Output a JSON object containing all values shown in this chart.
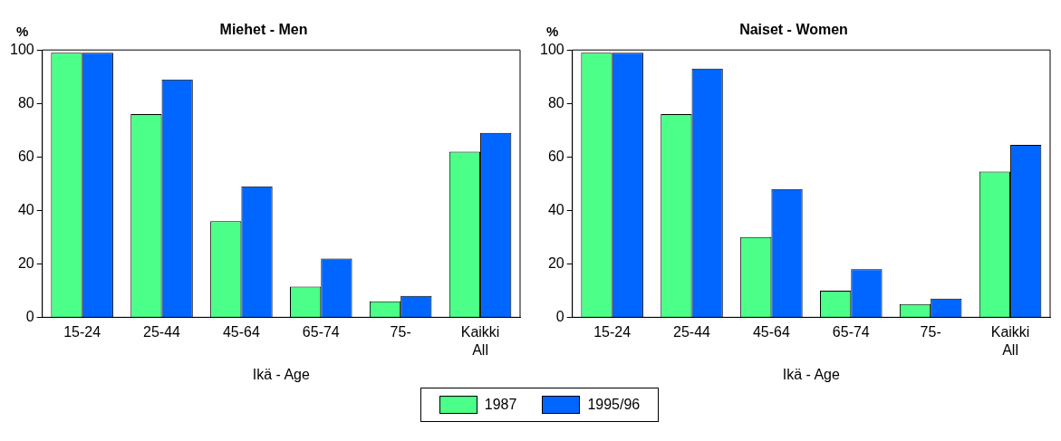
{
  "chart_data": [
    {
      "type": "bar",
      "title": "Miehet - Men",
      "xlabel": "Ikä - Age",
      "ylabel": "%",
      "categories": [
        "15-24",
        "25-44",
        "45-64",
        "65-74",
        "75-",
        "Kaikki\nAll"
      ],
      "series": [
        {
          "name": "1987",
          "color": "#4cff88",
          "values": [
            99,
            76,
            36,
            11.5,
            6,
            62
          ]
        },
        {
          "name": "1995/96",
          "color": "#0066ff",
          "values": [
            99,
            89,
            49,
            22,
            8,
            69
          ]
        }
      ],
      "ylim": [
        0,
        100
      ],
      "yticks": [
        0,
        20,
        40,
        60,
        80,
        100
      ],
      "grid": false,
      "legend": "bottom"
    },
    {
      "type": "bar",
      "title": "Naiset - Women",
      "xlabel": "Ikä - Age",
      "ylabel": "%",
      "categories": [
        "15-24",
        "25-44",
        "45-64",
        "65-74",
        "75-",
        "Kaikki\nAll"
      ],
      "series": [
        {
          "name": "1987",
          "color": "#4cff88",
          "values": [
            99,
            76,
            30,
            10,
            5,
            54.5
          ]
        },
        {
          "name": "1995/96",
          "color": "#0066ff",
          "values": [
            99,
            93,
            48,
            18,
            7,
            64.5
          ]
        }
      ],
      "ylim": [
        0,
        100
      ],
      "yticks": [
        0,
        20,
        40,
        60,
        80,
        100
      ],
      "grid": false,
      "legend": "bottom"
    }
  ]
}
